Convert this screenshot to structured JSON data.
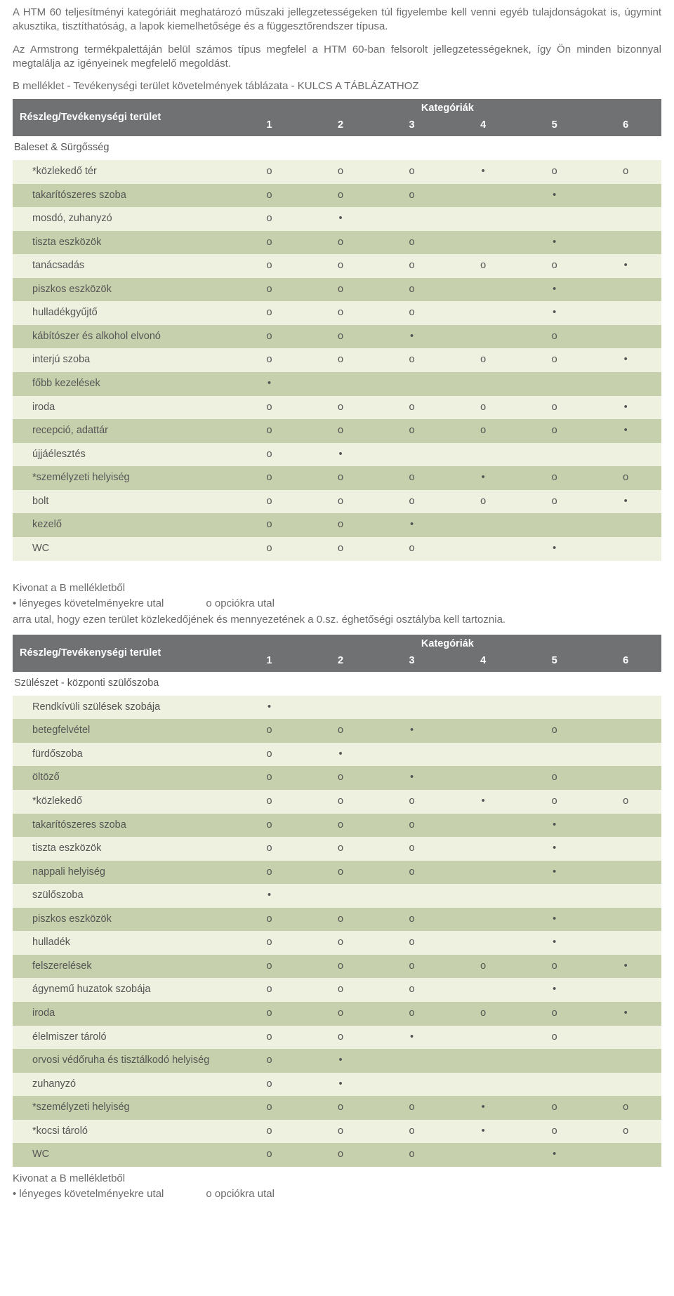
{
  "intro": {
    "p1": "A HTM 60 teljesítményi kategóriáit meghatározó műszaki jellegzetességeken túl figyelembe kell venni egyéb tulajdonságokat is, úgymint akusztika, tisztíthatóság, a lapok kiemelhetősége és a függesztőrendszer típusa.",
    "p2": "Az Armstrong termékpalettáján belül számos típus megfelel a HTM 60-ban felsorolt jellegzetességeknek, így Ön minden bizonnyal megtalálja az igényeinek megfelelő megoldást."
  },
  "appendixTitle": "B melléklet - Tevékenységi terület követelmények táblázata - KULCS A TÁBLÁZATHOZ",
  "headers": {
    "side": "Részleg/Tevékenységi terület",
    "categories": "Kategóriák",
    "nums": [
      "1",
      "2",
      "3",
      "4",
      "5",
      "6"
    ]
  },
  "symbols": {
    "opt": "o",
    "req": "•",
    "blank": ""
  },
  "table1": {
    "section": "Baleset & Sürgősség",
    "rows": [
      {
        "label": "*közlekedő tér",
        "c": [
          "o",
          "o",
          "o",
          "•",
          "o",
          "o"
        ]
      },
      {
        "label": "takarítószeres szoba",
        "c": [
          "o",
          "o",
          "o",
          "",
          "•",
          ""
        ]
      },
      {
        "label": "mosdó, zuhanyzó",
        "c": [
          "o",
          "•",
          "",
          "",
          "",
          ""
        ]
      },
      {
        "label": "tiszta eszközök",
        "c": [
          "o",
          "o",
          "o",
          "",
          "•",
          ""
        ]
      },
      {
        "label": "tanácsadás",
        "c": [
          "o",
          "o",
          "o",
          "o",
          "o",
          "•"
        ]
      },
      {
        "label": "piszkos eszközök",
        "c": [
          "o",
          "o",
          "o",
          "",
          "•",
          ""
        ]
      },
      {
        "label": "hulladékgyűjtő",
        "c": [
          "o",
          "o",
          "o",
          "",
          "•",
          ""
        ]
      },
      {
        "label": "kábítószer és alkohol elvonó",
        "c": [
          "o",
          "o",
          "•",
          "",
          "o",
          ""
        ]
      },
      {
        "label": "interjú szoba",
        "c": [
          "o",
          "o",
          "o",
          "o",
          "o",
          "•"
        ]
      },
      {
        "label": "főbb kezelések",
        "c": [
          "•",
          "",
          "",
          "",
          "",
          ""
        ]
      },
      {
        "label": "iroda",
        "c": [
          "o",
          "o",
          "o",
          "o",
          "o",
          "•"
        ]
      },
      {
        "label": "recepció, adattár",
        "c": [
          "o",
          "o",
          "o",
          "o",
          "o",
          "•"
        ]
      },
      {
        "label": "újjáélesztés",
        "c": [
          "o",
          "•",
          "",
          "",
          "",
          ""
        ]
      },
      {
        "label": "*személyzeti helyiség",
        "c": [
          "o",
          "o",
          "o",
          "•",
          "o",
          "o"
        ]
      },
      {
        "label": "bolt",
        "c": [
          "o",
          "o",
          "o",
          "o",
          "o",
          "•"
        ]
      },
      {
        "label": "kezelő",
        "c": [
          "o",
          "o",
          "•",
          "",
          "",
          ""
        ]
      },
      {
        "label": "WC",
        "c": [
          "o",
          "o",
          "o",
          "",
          "•",
          ""
        ]
      }
    ]
  },
  "legend1": {
    "line1a": "Kivonat a B mellékletből",
    "line2a": "• lényeges követelményekre utal",
    "line2b": "o opciókra utal",
    "line3": "arra utal, hogy ezen terület közlekedőjének és mennyezetének a 0.sz. éghetőségi osztályba kell tartoznia."
  },
  "table2": {
    "section": "Szülészet - központi szülőszoba",
    "rows": [
      {
        "label": "Rendkívüli szülések szobája",
        "c": [
          "•",
          "",
          "",
          "",
          "",
          ""
        ]
      },
      {
        "label": "betegfelvétel",
        "c": [
          "o",
          "o",
          "•",
          "",
          "o",
          ""
        ]
      },
      {
        "label": "fürdőszoba",
        "c": [
          "o",
          "•",
          "",
          "",
          "",
          ""
        ]
      },
      {
        "label": "öltöző",
        "c": [
          "o",
          "o",
          "•",
          "",
          "o",
          ""
        ]
      },
      {
        "label": "*közlekedő",
        "c": [
          "o",
          "o",
          "o",
          "•",
          "o",
          "o"
        ]
      },
      {
        "label": "takarítószeres szoba",
        "c": [
          "o",
          "o",
          "o",
          "",
          "•",
          ""
        ]
      },
      {
        "label": "tiszta eszközök",
        "c": [
          "o",
          "o",
          "o",
          "",
          "•",
          ""
        ]
      },
      {
        "label": "nappali helyiség",
        "c": [
          "o",
          "o",
          "o",
          "",
          "•",
          ""
        ]
      },
      {
        "label": "szülőszoba",
        "c": [
          "•",
          "",
          "",
          "",
          "",
          ""
        ]
      },
      {
        "label": "piszkos eszközök",
        "c": [
          "o",
          "o",
          "o",
          "",
          "•",
          ""
        ]
      },
      {
        "label": "hulladék",
        "c": [
          "o",
          "o",
          "o",
          "",
          "•",
          ""
        ]
      },
      {
        "label": "felszerelések",
        "c": [
          "o",
          "o",
          "o",
          "o",
          "o",
          "•"
        ]
      },
      {
        "label": "ágynemű huzatok szobája",
        "c": [
          "o",
          "o",
          "o",
          "",
          "•",
          ""
        ]
      },
      {
        "label": "iroda",
        "c": [
          "o",
          "o",
          "o",
          "o",
          "o",
          "•"
        ]
      },
      {
        "label": "élelmiszer tároló",
        "c": [
          "o",
          "o",
          "•",
          "",
          "o",
          ""
        ]
      },
      {
        "label": "orvosi védőruha és tisztálkodó helyiség",
        "c": [
          "o",
          "•",
          "",
          "",
          "",
          ""
        ]
      },
      {
        "label": "zuhanyzó",
        "c": [
          "o",
          "•",
          "",
          "",
          "",
          ""
        ]
      },
      {
        "label": "*személyzeti helyiség",
        "c": [
          "o",
          "o",
          "o",
          "•",
          "o",
          "o"
        ]
      },
      {
        "label": "*kocsi tároló",
        "c": [
          "o",
          "o",
          "o",
          "•",
          "o",
          "o"
        ]
      },
      {
        "label": "WC",
        "c": [
          "o",
          "o",
          "o",
          "",
          "•",
          ""
        ]
      }
    ]
  },
  "legend2": {
    "line1a": "Kivonat a B mellékletből",
    "line2a": "• lényeges követelményekre utal",
    "line2b": "o opciókra utal"
  },
  "style": {
    "rowLightBg": "#eef0e0",
    "rowDarkBg": "#c7d0ac",
    "headerBg": "#6f7173",
    "headerText": "#ffffff",
    "bodyText": "#6b6b6b",
    "cellText": "#555555",
    "pageBg": "#ffffff",
    "fontBase": 15,
    "fontTable": 14.5
  }
}
